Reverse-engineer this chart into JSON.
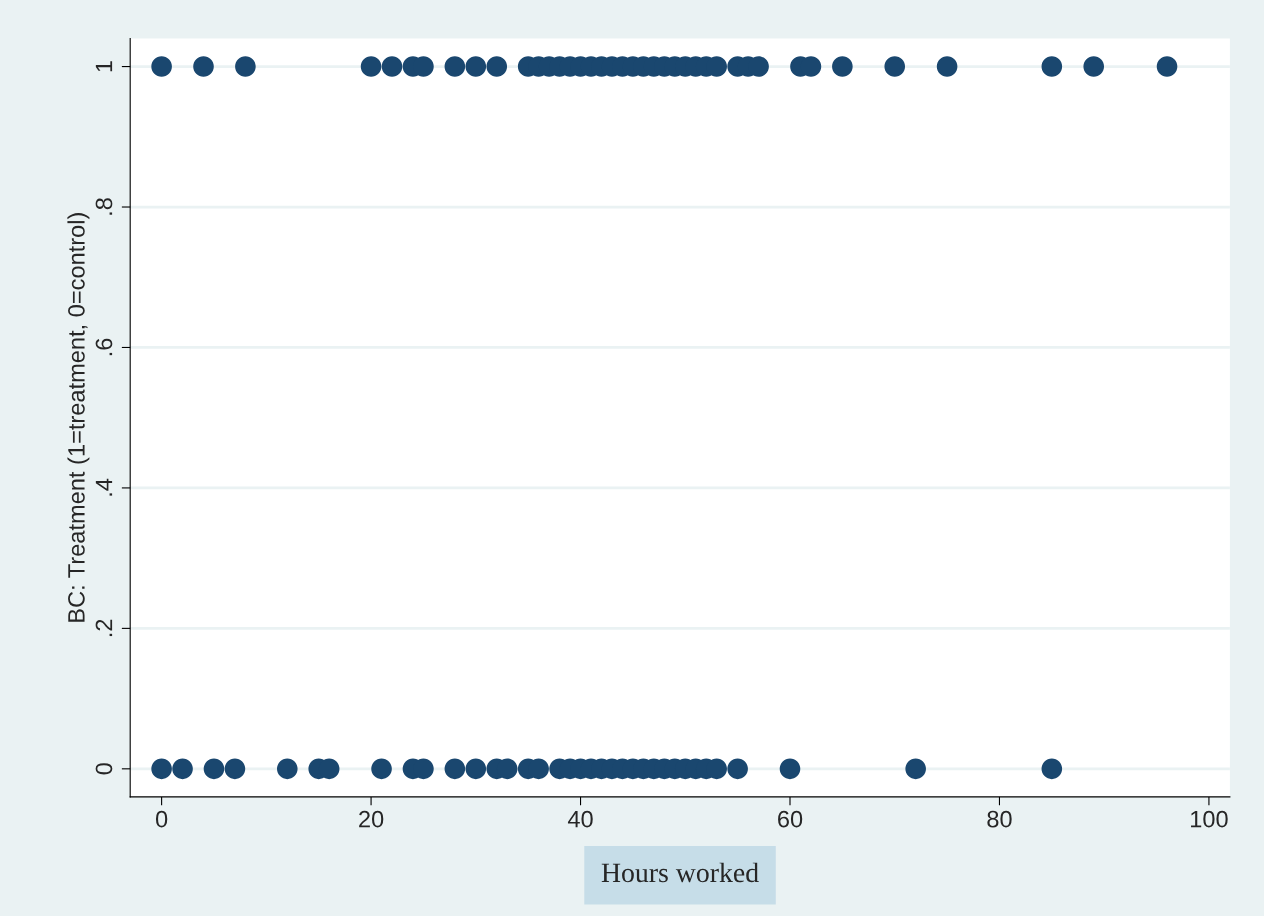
{
  "chart_data": {
    "type": "scatter",
    "xlabel": "Hours worked",
    "ylabel": "BC: Treatment (1=treatment, 0=control)",
    "xlim": [
      -3,
      102
    ],
    "xticks": [
      0,
      20,
      40,
      60,
      80,
      100
    ],
    "ylim": [
      -0.04,
      1.04
    ],
    "yticks": [
      0,
      {
        "value": 0.2,
        "label": ".2"
      },
      {
        "value": 0.4,
        "label": ".4"
      },
      {
        "value": 0.6,
        "label": ".6"
      },
      {
        "value": 0.8,
        "label": ".8"
      },
      1
    ],
    "grid": "y",
    "marker": "circle",
    "series": [
      {
        "color": "#1a476f",
        "x": [
          0,
          4,
          8,
          20,
          22,
          24,
          25,
          28,
          30,
          32,
          35,
          36,
          37,
          38,
          39,
          40,
          41,
          42,
          43,
          44,
          45,
          46,
          47,
          48,
          49,
          50,
          51,
          52,
          53,
          55,
          56,
          57,
          61,
          62,
          65,
          70,
          75,
          85,
          89,
          96
        ],
        "values": [
          1,
          1,
          1,
          1,
          1,
          1,
          1,
          1,
          1,
          1,
          1,
          1,
          1,
          1,
          1,
          1,
          1,
          1,
          1,
          1,
          1,
          1,
          1,
          1,
          1,
          1,
          1,
          1,
          1,
          1,
          1,
          1,
          1,
          1,
          1,
          1,
          1,
          1,
          1,
          1
        ]
      },
      {
        "color": "#1a476f",
        "x": [
          0,
          2,
          5,
          7,
          12,
          15,
          16,
          21,
          24,
          25,
          28,
          30,
          32,
          33,
          35,
          36,
          38,
          39,
          40,
          41,
          42,
          43,
          44,
          45,
          46,
          47,
          48,
          49,
          50,
          51,
          52,
          53,
          55,
          60,
          72,
          85
        ],
        "values": [
          0,
          0,
          0,
          0,
          0,
          0,
          0,
          0,
          0,
          0,
          0,
          0,
          0,
          0,
          0,
          0,
          0,
          0,
          0,
          0,
          0,
          0,
          0,
          0,
          0,
          0,
          0,
          0,
          0,
          0,
          0,
          0,
          0,
          0,
          0,
          0
        ]
      }
    ]
  }
}
